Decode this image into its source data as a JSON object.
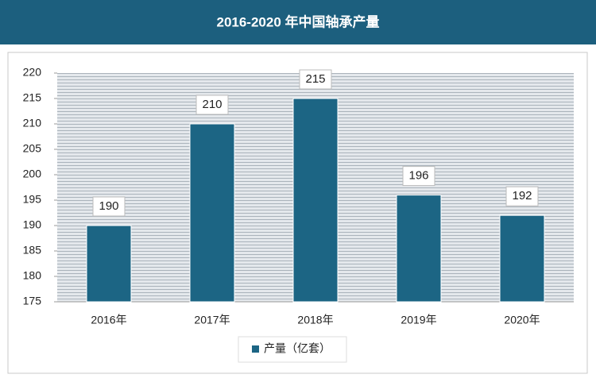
{
  "chart_data": {
    "type": "bar",
    "title": "2016-2020 年中国轴承产量",
    "categories": [
      "2016年",
      "2017年",
      "2018年",
      "2019年",
      "2020年"
    ],
    "series": [
      {
        "name": "产量（亿套）",
        "color": "#1c6584",
        "values": [
          190,
          210,
          215,
          196,
          192
        ]
      }
    ],
    "ylim": [
      175,
      220
    ],
    "yticks": [
      175,
      180,
      185,
      190,
      195,
      200,
      205,
      210,
      215,
      220
    ]
  }
}
